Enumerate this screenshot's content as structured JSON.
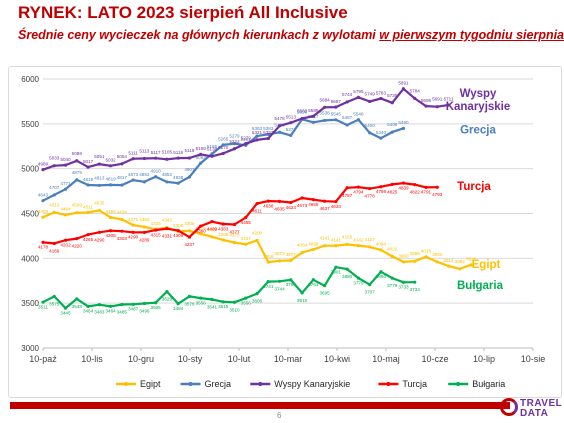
{
  "header": {
    "title": "RYNEK: LATO 2023 sierpień All Inclusive",
    "subtitle_prefix": "Średnie ceny wycieczek na głównych kierunkach z wylotami ",
    "subtitle_underlined": "w pierwszym tygodniu sierpnia"
  },
  "footer": {
    "page_number": "6",
    "logo_line1": "TRAVEL",
    "logo_line2": "DATA"
  },
  "colors": {
    "Egipt": "#ffc000",
    "Grecja": "#4a7fbe",
    "Wyspy Kanaryjskie": "#7030a0",
    "Turcja": "#ff0000",
    "Bułgaria": "#00b050",
    "accent": "#c00000"
  },
  "chart_data": {
    "type": "line",
    "x_ticks": [
      "10-paź",
      "10-lis",
      "10-gru",
      "10-sty",
      "10-lut",
      "10-mar",
      "10-kwi",
      "10-maj",
      "10-cze",
      "10-lip",
      "10-sie"
    ],
    "ylim": [
      3000,
      6000
    ],
    "y_ticks": [
      3000,
      3500,
      4000,
      4500,
      5000,
      5500,
      6000
    ],
    "grid": true,
    "legend": "bottom",
    "series": [
      {
        "name": "Egipt",
        "inline_label": "Egipt",
        "points": [
          [
            0,
            4459
          ],
          [
            1,
            4513
          ],
          [
            2,
            4484
          ],
          [
            3,
            4509
          ],
          [
            4,
            4511
          ],
          [
            5,
            4535
          ],
          [
            6,
            4456
          ],
          [
            7,
            4434
          ],
          [
            8,
            4371
          ],
          [
            9,
            4350
          ],
          [
            10,
            4325
          ],
          [
            11,
            4342
          ],
          [
            12,
            4300
          ],
          [
            13,
            4306
          ],
          [
            14,
            4274
          ],
          [
            15,
            4240
          ],
          [
            16,
            4205
          ],
          [
            17,
            4175
          ],
          [
            18,
            4157
          ],
          [
            19,
            4200
          ],
          [
            20,
            3958
          ],
          [
            21,
            3972
          ],
          [
            22,
            3977
          ],
          [
            23,
            4064
          ],
          [
            24,
            4098
          ],
          [
            25,
            4141
          ],
          [
            26,
            4141
          ],
          [
            27,
            4155
          ],
          [
            28,
            4142
          ],
          [
            29,
            4127
          ],
          [
            30,
            4094
          ],
          [
            31,
            4022
          ],
          [
            32,
            3960
          ],
          [
            33,
            3968
          ],
          [
            34,
            4016
          ],
          [
            35,
            3960
          ],
          [
            36,
            3914
          ],
          [
            37,
            3882
          ],
          [
            38,
            3928
          ]
        ]
      },
      {
        "name": "Grecja",
        "inline_label": "Grecja",
        "points": [
          [
            0,
            4643
          ],
          [
            1,
            4707
          ],
          [
            2,
            4771
          ],
          [
            3,
            4875
          ],
          [
            4,
            4818
          ],
          [
            5,
            4813
          ],
          [
            6,
            4819
          ],
          [
            7,
            4817
          ],
          [
            8,
            4873
          ],
          [
            9,
            4853
          ],
          [
            10,
            4910
          ],
          [
            11,
            4852
          ],
          [
            12,
            4838
          ],
          [
            13,
            4907
          ],
          [
            14,
            5062
          ],
          [
            15,
            5165
          ],
          [
            16,
            5265
          ],
          [
            17,
            5279
          ],
          [
            18,
            5261
          ],
          [
            19,
            5363
          ],
          [
            20,
            5383
          ],
          [
            21,
            5406
          ],
          [
            22,
            5371
          ],
          [
            23,
            5550
          ],
          [
            24,
            5517
          ],
          [
            25,
            5538
          ],
          [
            26,
            5545
          ],
          [
            27,
            5487
          ],
          [
            28,
            5546
          ],
          [
            29,
            5400
          ],
          [
            30,
            5340
          ],
          [
            31,
            5408
          ],
          [
            32,
            5450
          ]
        ]
      },
      {
        "name": "Wyspy Kanaryjskie",
        "inline_label": "Wyspy Kanaryjskie",
        "points": [
          [
            0,
            4989
          ],
          [
            1,
            5033
          ],
          [
            2,
            5040
          ],
          [
            3,
            5088
          ],
          [
            4,
            5017
          ],
          [
            5,
            5051
          ],
          [
            6,
            5032
          ],
          [
            7,
            5054
          ],
          [
            8,
            5111
          ],
          [
            9,
            5113
          ],
          [
            10,
            5117
          ],
          [
            11,
            5105
          ],
          [
            12,
            5118
          ],
          [
            13,
            5119
          ],
          [
            14,
            5159
          ],
          [
            15,
            5138
          ],
          [
            16,
            5170
          ],
          [
            17,
            5222
          ],
          [
            18,
            5279
          ],
          [
            19,
            5321
          ],
          [
            20,
            5337
          ],
          [
            21,
            5478
          ],
          [
            22,
            5513
          ],
          [
            23,
            5560
          ],
          [
            24,
            5585
          ],
          [
            25,
            5684
          ],
          [
            26,
            5687
          ],
          [
            27,
            5744
          ],
          [
            28,
            5795
          ],
          [
            29,
            5749
          ],
          [
            30,
            5783
          ],
          [
            31,
            5735
          ],
          [
            32,
            5891
          ],
          [
            33,
            5784
          ],
          [
            34,
            5698
          ],
          [
            35,
            5691
          ],
          [
            36,
            5711
          ]
        ]
      },
      {
        "name": "Turcja",
        "inline_label": "Turcja",
        "points": [
          [
            0,
            4178
          ],
          [
            1,
            4166
          ],
          [
            2,
            4202
          ],
          [
            3,
            4220
          ],
          [
            4,
            4265
          ],
          [
            5,
            4290
          ],
          [
            6,
            4308
          ],
          [
            7,
            4303
          ],
          [
            8,
            4290
          ],
          [
            9,
            4289
          ],
          [
            10,
            4315
          ],
          [
            11,
            4331
          ],
          [
            12,
            4309
          ],
          [
            13,
            4237
          ],
          [
            14,
            4360
          ],
          [
            15,
            4409
          ],
          [
            16,
            4383
          ],
          [
            17,
            4377
          ],
          [
            18,
            4455
          ],
          [
            19,
            4611
          ],
          [
            20,
            4638
          ],
          [
            21,
            4635
          ],
          [
            22,
            4623
          ],
          [
            23,
            4673
          ],
          [
            24,
            4655
          ],
          [
            25,
            4637
          ],
          [
            26,
            4633
          ],
          [
            27,
            4787
          ],
          [
            28,
            4794
          ],
          [
            29,
            4778
          ],
          [
            30,
            4798
          ],
          [
            31,
            4825
          ],
          [
            32,
            4839
          ],
          [
            33,
            4822
          ],
          [
            34,
            4791
          ],
          [
            35,
            4793
          ]
        ]
      },
      {
        "name": "Bułgaria",
        "inline_label": "Bułgaria",
        "points": [
          [
            0,
            3511
          ],
          [
            1,
            3575
          ],
          [
            2,
            3445
          ],
          [
            3,
            3548
          ],
          [
            4,
            3464
          ],
          [
            5,
            3483
          ],
          [
            6,
            3464
          ],
          [
            7,
            3485
          ],
          [
            8,
            3487
          ],
          [
            9,
            3496
          ],
          [
            10,
            3505
          ],
          [
            11,
            3629
          ],
          [
            12,
            3494
          ],
          [
            13,
            3576
          ],
          [
            14,
            3556
          ],
          [
            15,
            3541
          ],
          [
            16,
            3515
          ],
          [
            17,
            3510
          ],
          [
            18,
            3556
          ],
          [
            19,
            3606
          ],
          [
            20,
            3741
          ],
          [
            21,
            3744
          ],
          [
            22,
            3760
          ],
          [
            23,
            3615
          ],
          [
            24,
            3761
          ],
          [
            25,
            3695
          ],
          [
            26,
            3901
          ],
          [
            27,
            3880
          ],
          [
            28,
            3779
          ],
          [
            29,
            3707
          ],
          [
            30,
            3850
          ],
          [
            31,
            3779
          ],
          [
            32,
            3733
          ],
          [
            33,
            3734
          ]
        ]
      }
    ]
  }
}
